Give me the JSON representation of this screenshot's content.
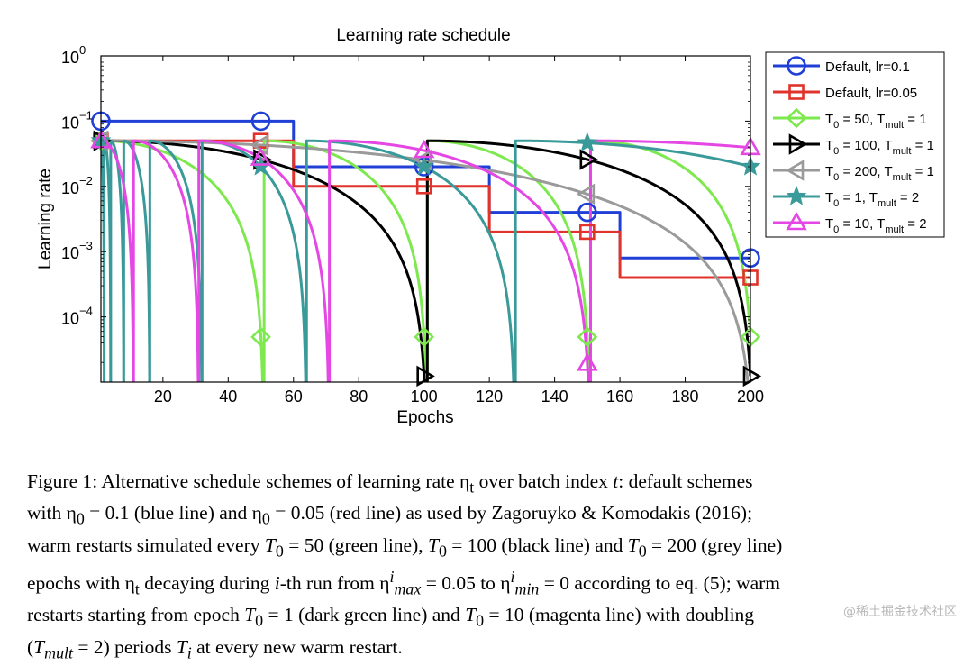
{
  "chart_data": {
    "type": "line",
    "title": "Learning rate schedule",
    "xlabel": "Epochs",
    "ylabel": "Learning rate",
    "xlim": [
      1,
      200
    ],
    "ylim": [
      1e-05,
      1
    ],
    "yscale": "log",
    "x_ticks": [
      20,
      40,
      60,
      80,
      100,
      120,
      140,
      160,
      180,
      200
    ],
    "y_ticks": [
      {
        "value": 1,
        "base": "10",
        "exp": "0"
      },
      {
        "value": 0.1,
        "base": "10",
        "exp": "−1"
      },
      {
        "value": 0.01,
        "base": "10",
        "exp": "−2"
      },
      {
        "value": 0.001,
        "base": "10",
        "exp": "−3"
      },
      {
        "value": 0.0001,
        "base": "10",
        "exp": "−4"
      }
    ],
    "grid": false,
    "legend_position": "outside-right",
    "series": [
      {
        "name": "Default, lr=0.1",
        "legend_main": "Default, lr=0.1",
        "legend_sub": "",
        "legend_tail": "",
        "legend_sub2": "",
        "legend_tail2": "",
        "kind": "step",
        "color": "#1f3fd6",
        "marker": "circle",
        "steps": [
          [
            1,
            0.1
          ],
          [
            60,
            0.02
          ],
          [
            120,
            0.004
          ],
          [
            160,
            0.0008
          ],
          [
            200,
            0.0008
          ]
        ],
        "marker_x": [
          1,
          50,
          100,
          150,
          200
        ]
      },
      {
        "name": "Default, lr=0.05",
        "legend_main": "Default, lr=0.05",
        "legend_sub": "",
        "legend_tail": "",
        "legend_sub2": "",
        "legend_tail2": "",
        "kind": "step",
        "color": "#e0332b",
        "marker": "square",
        "steps": [
          [
            1,
            0.05
          ],
          [
            60,
            0.01
          ],
          [
            120,
            0.002
          ],
          [
            160,
            0.0004
          ],
          [
            200,
            0.0004
          ]
        ],
        "marker_x": [
          1,
          50,
          100,
          150,
          200
        ]
      },
      {
        "name": "T0 = 50, Tmult = 1",
        "legend_main": "T",
        "legend_sub": "0",
        "legend_tail": " = 50, T",
        "legend_sub2": "mult",
        "legend_tail2": " = 1",
        "kind": "sgdr",
        "color": "#7ee84f",
        "marker": "diamond",
        "eta_max": 0.05,
        "T0": 50,
        "Tmult": 1,
        "marker_x": [
          1,
          50,
          100,
          150,
          200
        ]
      },
      {
        "name": "T0 = 100, Tmult = 1",
        "legend_main": "T",
        "legend_sub": "0",
        "legend_tail": " = 100, T",
        "legend_sub2": "mult",
        "legend_tail2": " = 1",
        "kind": "sgdr",
        "color": "#000000",
        "marker": "triangle-right",
        "eta_max": 0.05,
        "T0": 100,
        "Tmult": 1,
        "marker_x": [
          1,
          50,
          100,
          150,
          200
        ]
      },
      {
        "name": "T0 = 200, Tmult = 1",
        "legend_main": "T",
        "legend_sub": "0",
        "legend_tail": " = 200, T",
        "legend_sub2": "mult",
        "legend_tail2": " = 1",
        "kind": "sgdr",
        "color": "#9a9a9a",
        "marker": "triangle-left",
        "eta_max": 0.05,
        "T0": 200,
        "Tmult": 1,
        "marker_x": [
          1,
          50,
          100,
          150,
          200
        ]
      },
      {
        "name": "T0 = 1, Tmult = 2",
        "legend_main": "T",
        "legend_sub": "0",
        "legend_tail": " = 1, T",
        "legend_sub2": "mult",
        "legend_tail2": " = 2",
        "kind": "sgdr",
        "color": "#3a9a9a",
        "marker": "star",
        "eta_max": 0.05,
        "T0": 1,
        "Tmult": 2,
        "marker_x": [
          1,
          50,
          100,
          150,
          200
        ]
      },
      {
        "name": "T0 = 10, Tmult = 2",
        "legend_main": "T",
        "legend_sub": "0",
        "legend_tail": " = 10, T",
        "legend_sub2": "mult",
        "legend_tail2": " = 2",
        "kind": "sgdr",
        "color": "#e447e4",
        "marker": "triangle-up",
        "eta_max": 0.05,
        "T0": 10,
        "Tmult": 2,
        "marker_x": [
          1,
          50,
          100,
          150,
          200
        ]
      }
    ]
  },
  "caption": {
    "lines": [
      "Figure 1:   Alternative schedule schemes of learning rate η<sub>t</sub> over batch index <i>t</i>: default schemes",
      "with η<sub>0</sub> = 0.1 (blue line) and η<sub>0</sub> = 0.05 (red line) as used by Zagoruyko &amp; Komodakis (2016);",
      "warm restarts simulated every <i>T</i><sub>0</sub> = 50 (green line), <i>T</i><sub>0</sub> = 100 (black line) and <i>T</i><sub>0</sub> = 200 (grey line)",
      "epochs with η<sub>t</sub> decaying during <i>i</i>-th run from η<sup><i>i</i></sup><sub><i>max</i></sub> = 0.05 to η<sup><i>i</i></sup><sub><i>min</i></sub> = 0 according to eq. (5); warm",
      "restarts starting from epoch <i>T</i><sub>0</sub> = 1 (dark green line) and <i>T</i><sub>0</sub> = 10 (magenta line) with doubling",
      "(<i>T<sub>mult</sub></i> = 2) periods <i>T<sub>i</sub></i> at every new warm restart."
    ]
  },
  "watermark": "@稀土掘金技术社区"
}
